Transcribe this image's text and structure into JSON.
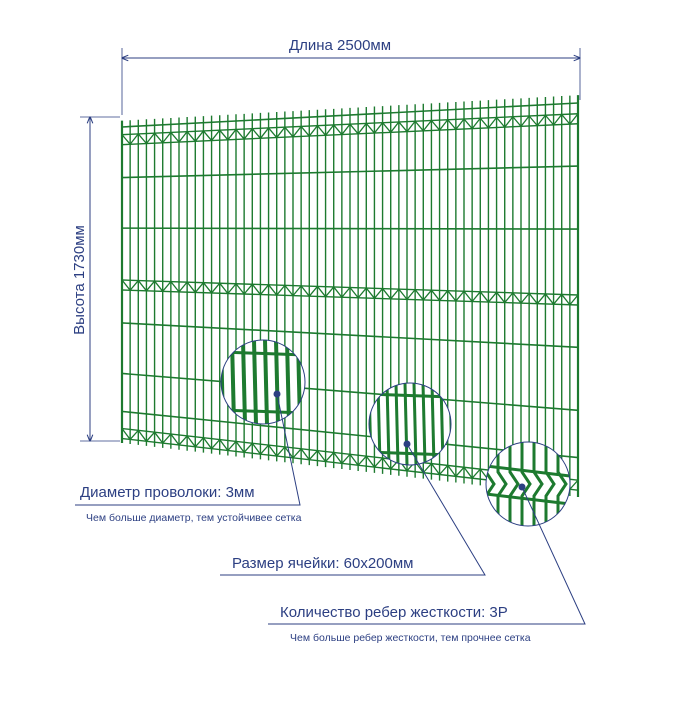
{
  "dimensions": {
    "length": "Длина 2500мм",
    "height": "Высота 1730мм"
  },
  "callouts": [
    {
      "title": "Диаметр проволоки: 3мм",
      "note": "Чем больше диаметр, тем устойчивее сетка"
    },
    {
      "title": "Размер ячейки: 60х200мм"
    },
    {
      "title": "Количество ребер жесткости: 3Р",
      "note": "Чем больше ребер жесткости, тем прочнее сетка"
    }
  ]
}
